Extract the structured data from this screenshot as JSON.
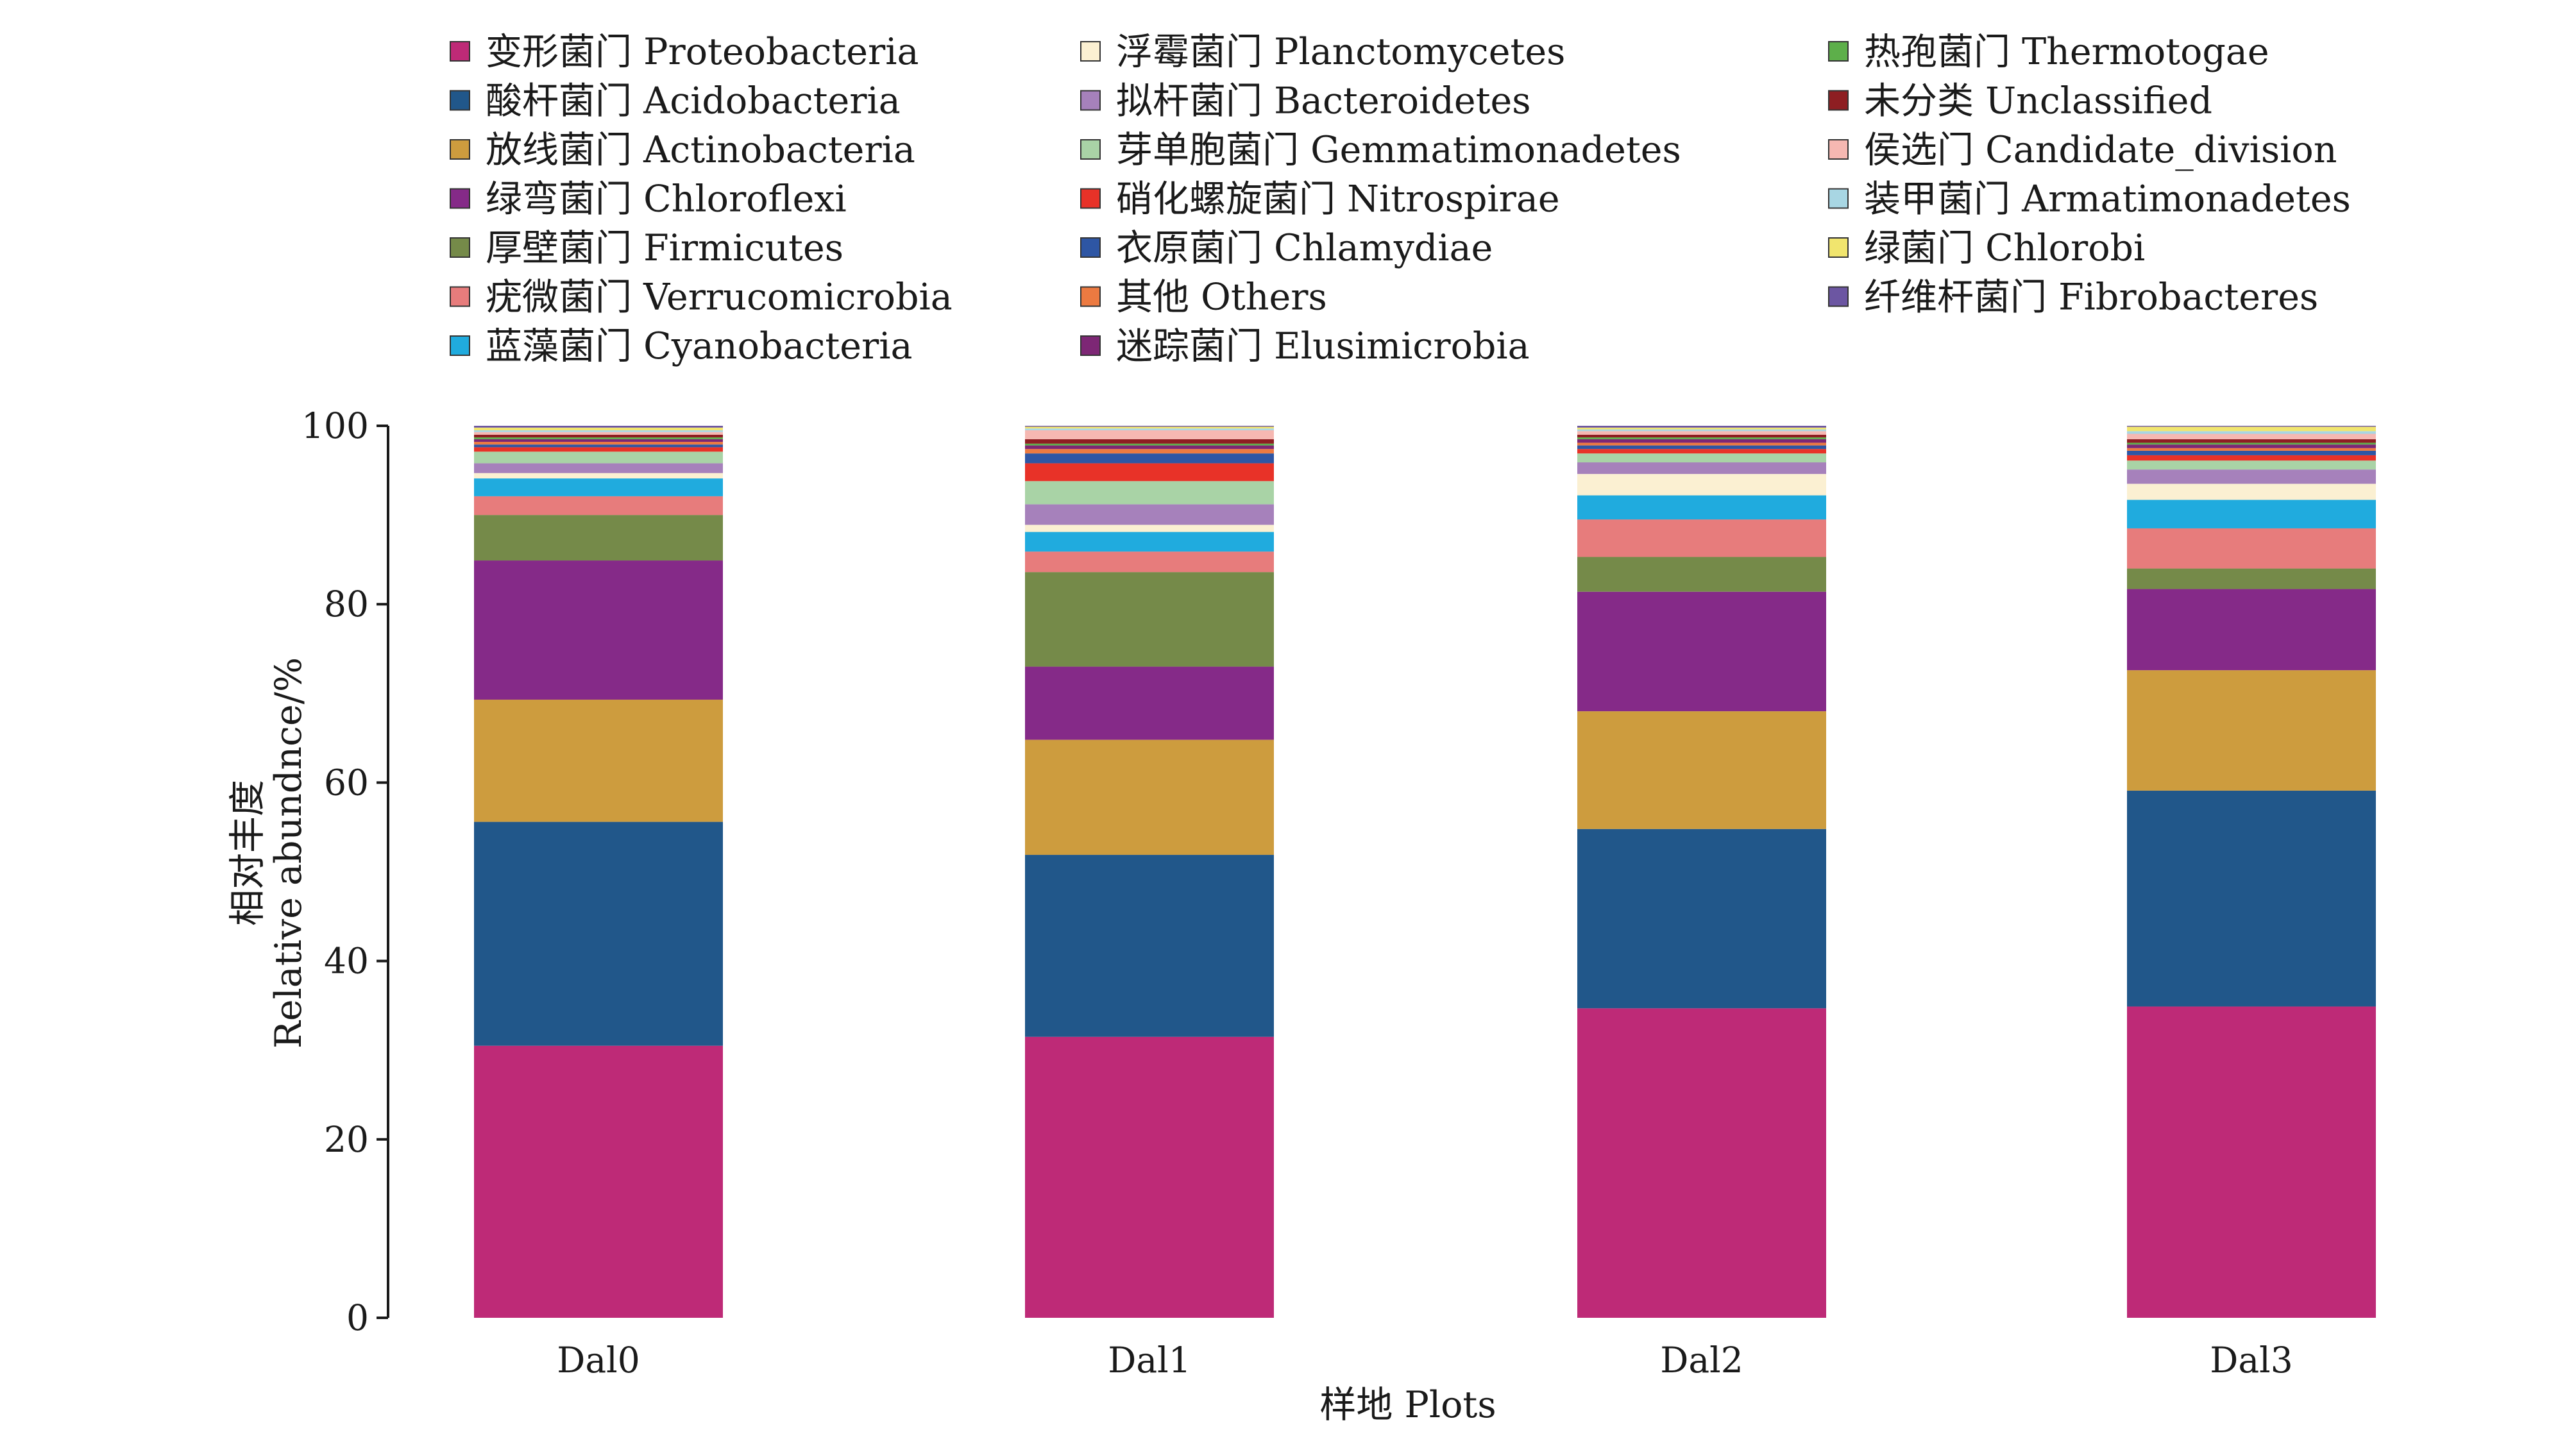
{
  "chart_data": {
    "type": "bar",
    "stacked": true,
    "title": "",
    "xlabel": "样地 Plots",
    "ylabel": [
      "相对丰度",
      "Relative abundnce/%"
    ],
    "ylim": [
      0,
      100
    ],
    "yticks": [
      0,
      20,
      40,
      60,
      80,
      100
    ],
    "grid": false,
    "legend_position": "top",
    "categories": [
      "Dal0",
      "Dal1",
      "Dal2",
      "Dal3"
    ],
    "series": [
      {
        "name": "变形菌门 Proteobacteria",
        "color": "#BE2A77",
        "values": [
          30.5,
          31.5,
          34.7,
          34.9
        ]
      },
      {
        "name": "酸杆菌门 Acidobacteria",
        "color": "#21578A",
        "values": [
          25.1,
          20.4,
          20.1,
          24.2
        ]
      },
      {
        "name": "放线菌门 Actinobacteria",
        "color": "#CD9C3E",
        "values": [
          13.7,
          12.9,
          13.2,
          13.5
        ]
      },
      {
        "name": "绿弯菌门 Chloroflexi",
        "color": "#852A88",
        "values": [
          15.6,
          8.2,
          13.4,
          9.1
        ]
      },
      {
        "name": "厚壁菌门 Firmicutes",
        "color": "#758A49",
        "values": [
          5.1,
          10.6,
          3.9,
          2.3
        ]
      },
      {
        "name": "疣微菌门 Verrucomicrobia",
        "color": "#E77C7C",
        "values": [
          2.1,
          2.3,
          4.2,
          4.5
        ]
      },
      {
        "name": "蓝藻菌门 Cyanobacteria",
        "color": "#20ABDE",
        "values": [
          2.0,
          2.2,
          2.7,
          3.2
        ]
      },
      {
        "name": "浮霉菌门 Planctomycetes",
        "color": "#FBF0D2",
        "values": [
          0.6,
          0.8,
          2.4,
          1.8
        ]
      },
      {
        "name": "拟杆菌门 Bacteroidetes",
        "color": "#A681BB",
        "values": [
          1.1,
          2.3,
          1.3,
          1.6
        ]
      },
      {
        "name": "芽单胞菌门 Gemmatimonadetes",
        "color": "#A9D3A6",
        "values": [
          1.3,
          2.6,
          1.0,
          1.0
        ]
      },
      {
        "name": "硝化螺旋菌门 Nitrospirae",
        "color": "#E83228",
        "values": [
          0.5,
          2.0,
          0.5,
          0.6
        ]
      },
      {
        "name": "衣原菌门 Chlamydiae",
        "color": "#2E56A4",
        "values": [
          0.3,
          1.1,
          0.4,
          0.5
        ]
      },
      {
        "name": "其他 Others",
        "color": "#EC7A41",
        "values": [
          0.3,
          0.5,
          0.3,
          0.3
        ]
      },
      {
        "name": "迷踪菌门 Elusimicrobia",
        "color": "#7D2775",
        "values": [
          0.3,
          0.4,
          0.4,
          0.4
        ]
      },
      {
        "name": "热孢菌门 Thermotogae",
        "color": "#5DAF4A",
        "values": [
          0.2,
          0.2,
          0.2,
          0.2
        ]
      },
      {
        "name": "未分类 Unclassified",
        "color": "#8E1E22",
        "values": [
          0.3,
          0.5,
          0.3,
          0.4
        ]
      },
      {
        "name": "侯选门 Candidate_division",
        "color": "#F6B8B2",
        "values": [
          0.3,
          1.0,
          0.4,
          0.6
        ]
      },
      {
        "name": "装甲菌门 Armatimonadetes",
        "color": "#A8D6E3",
        "values": [
          0.2,
          0.2,
          0.2,
          0.3
        ]
      },
      {
        "name": "绿菌门 Chlorobi",
        "color": "#F1E56E",
        "values": [
          0.3,
          0.2,
          0.2,
          0.5
        ]
      },
      {
        "name": "纤维杆菌门 Fibrobacteres",
        "color": "#6C56A2",
        "values": [
          0.2,
          0.1,
          0.2,
          0.1
        ]
      }
    ]
  }
}
